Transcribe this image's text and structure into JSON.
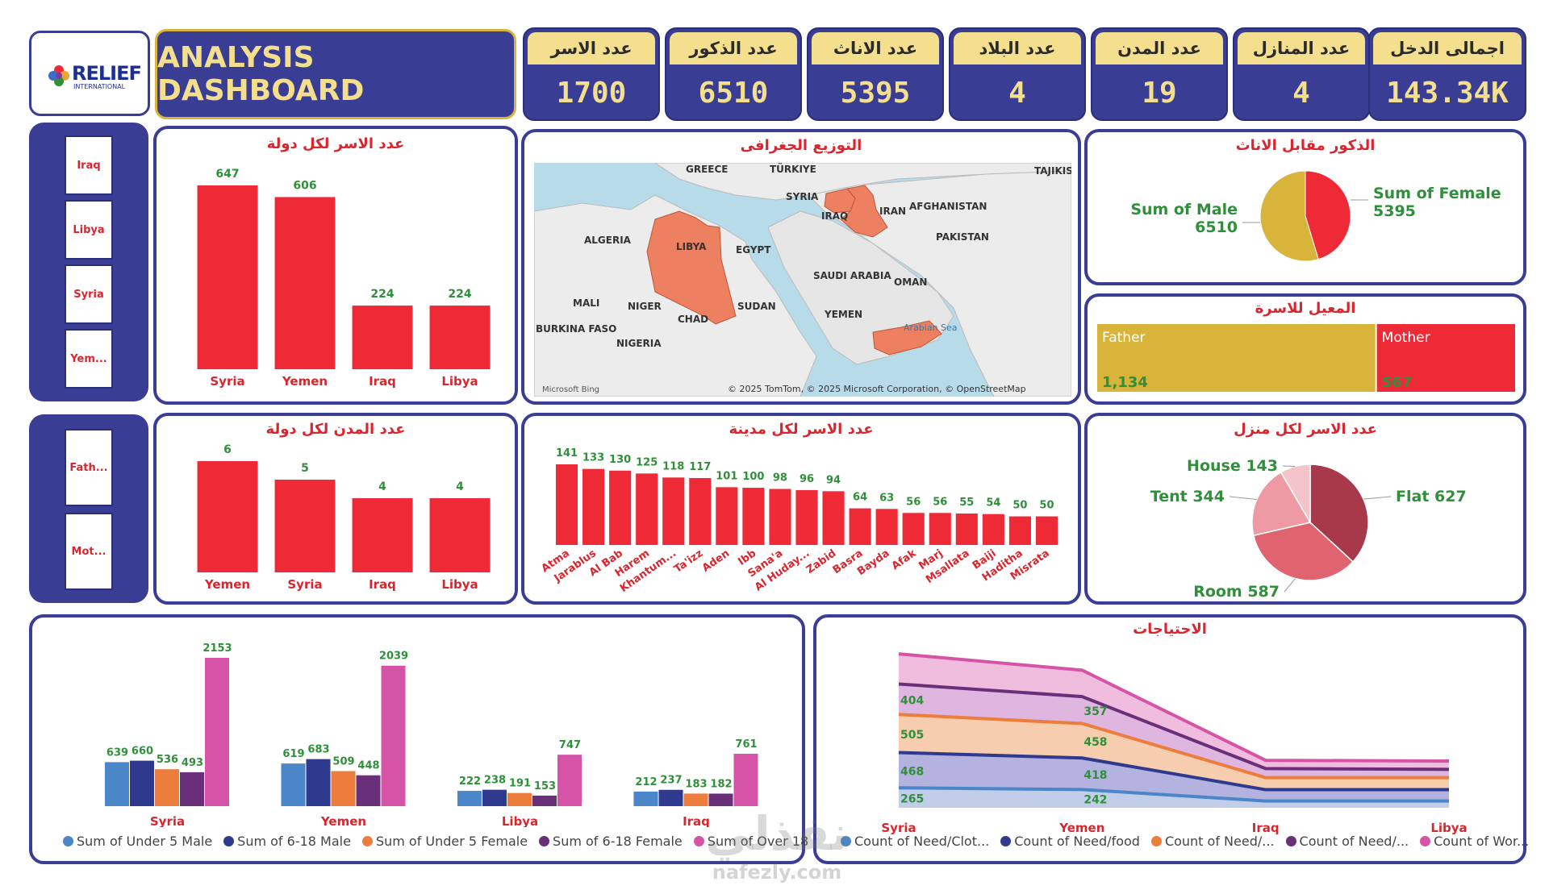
{
  "logo": {
    "name": "RELIEF",
    "sub": "INTERNATIONAL"
  },
  "title": "ANALYSIS DASHBOARD",
  "kpis": [
    {
      "label": "عدد الاسر",
      "value": "1700"
    },
    {
      "label": "عدد الذكور",
      "value": "6510"
    },
    {
      "label": "عدد الاناث",
      "value": "5395"
    },
    {
      "label": "عدد البلاد",
      "value": "4"
    },
    {
      "label": "عدد المدن",
      "value": "19"
    },
    {
      "label": "عدد المنازل",
      "value": "4"
    },
    {
      "label": "اجمالى الدخل",
      "value": "143.34K"
    }
  ],
  "slicer_country": [
    "Iraq",
    "Libya",
    "Syria",
    "Yem..."
  ],
  "slicer_provider": [
    "Fath...",
    "Mot..."
  ],
  "map": {
    "title": "التوزيع الجغرافى",
    "labels": [
      "GREECE",
      "TÜRKIYE",
      "TAJIKIS",
      "SYRIA",
      "IRAQ",
      "IRAN",
      "AFGHANISTAN",
      "ALGERIA",
      "LIBYA",
      "EGYPT",
      "PAKISTAN",
      "SAUDI ARABIA",
      "OMAN",
      "MALI",
      "NIGER",
      "CHAD",
      "SUDAN",
      "YEMEN",
      "BURKINA FASO",
      "NIGERIA",
      "Arabian Sea"
    ],
    "attribution": "© 2025 TomTom, © 2025 Microsoft Corporation, © OpenStreetMap",
    "bing": "Microsoft Bing"
  },
  "colors": {
    "navy": "#3a3d94",
    "red": "#ee2a36",
    "gold": "#d9b43b",
    "green": "#2f8f3a",
    "kpi_text": "#f3df8e"
  },
  "chart_data": [
    {
      "id": "families_per_country",
      "type": "bar",
      "title": "عدد الاسر لكل دولة",
      "categories": [
        "Syria",
        "Yemen",
        "Iraq",
        "Libya"
      ],
      "values": [
        647,
        606,
        224,
        224
      ]
    },
    {
      "id": "male_vs_female",
      "type": "pie",
      "title": "الذكور مقابل الاناث",
      "labels": [
        "Sum of Female",
        "Sum of Male"
      ],
      "values": [
        5395,
        6510
      ],
      "colors": [
        "#ee2a36",
        "#d9b43b"
      ]
    },
    {
      "id": "provider",
      "type": "bar",
      "title": "المعيل للاسرة",
      "labels": [
        "Father",
        "Mother"
      ],
      "values": [
        1134,
        567
      ],
      "value_labels": [
        "1,134",
        "567"
      ],
      "colors": [
        "#d9b43b",
        "#ee2a36"
      ]
    },
    {
      "id": "cities_per_country",
      "type": "bar",
      "title": "عدد المدن لكل دولة",
      "categories": [
        "Yemen",
        "Syria",
        "Iraq",
        "Libya"
      ],
      "values": [
        6,
        5,
        4,
        4
      ]
    },
    {
      "id": "families_per_city",
      "type": "bar",
      "title": "عدد الاسر لكل مدينة",
      "categories": [
        "Atma",
        "Jarablus",
        "Al Bab",
        "Harem",
        "Khantum...",
        "Ta'izz",
        "Aden",
        "Ibb",
        "Sana'a",
        "Al Huday...",
        "Zabid",
        "Basra",
        "Bayda",
        "Afak",
        "Marj",
        "Msallata",
        "Baiji",
        "Haditha",
        "Misrata"
      ],
      "values": [
        141,
        133,
        130,
        125,
        118,
        117,
        101,
        100,
        98,
        96,
        94,
        64,
        63,
        56,
        56,
        55,
        54,
        50,
        50
      ]
    },
    {
      "id": "families_per_house",
      "type": "pie",
      "title": "عدد الاسر لكل منزل",
      "labels": [
        "Flat",
        "Room",
        "Tent",
        "House"
      ],
      "values": [
        627,
        587,
        344,
        143
      ],
      "colors": [
        "#a8394a",
        "#e0646f",
        "#ee9aa4",
        "#f3c4c9"
      ]
    },
    {
      "id": "age_gender",
      "type": "bar",
      "categories": [
        "Syria",
        "Yemen",
        "Libya",
        "Iraq"
      ],
      "series": [
        {
          "name": "Sum of Under 5 Male",
          "values": [
            639,
            619,
            222,
            212
          ],
          "color": "#4b86c9"
        },
        {
          "name": "Sum of 6-18 Male",
          "values": [
            660,
            683,
            238,
            237
          ],
          "color": "#2f3a8f"
        },
        {
          "name": "Sum of Under 5 Female",
          "values": [
            536,
            509,
            191,
            183
          ],
          "color": "#ed7d3c"
        },
        {
          "name": "Sum of 6-18 Female",
          "values": [
            493,
            448,
            153,
            182
          ],
          "color": "#6a2f79"
        },
        {
          "name": "Sum of Over 18",
          "values": [
            2153,
            2039,
            747,
            761
          ],
          "color": "#d654a8"
        }
      ],
      "legend_labels": [
        "Sum of Under 5 Male",
        "Sum of 6-18 Male",
        "Sum of Under 5 Female",
        "Sum of 6-18 Female",
        "Sum of Over 18"
      ]
    },
    {
      "id": "needs",
      "type": "area",
      "title": "الاحتياجات",
      "categories": [
        "Syria",
        "Yemen",
        "Iraq",
        "Libya"
      ],
      "series": [
        {
          "name": "Count of Need/Clot...",
          "values": [
            265,
            242,
            90,
            90
          ],
          "color": "#4b86c9"
        },
        {
          "name": "Count of Need/food",
          "values": [
            468,
            418,
            150,
            150
          ],
          "color": "#2f3a8f"
        },
        {
          "name": "Count of Need/...",
          "values": [
            505,
            458,
            160,
            160
          ],
          "color": "#ed7d3c"
        },
        {
          "name": "Count of Need/...",
          "values": [
            404,
            357,
            120,
            110
          ],
          "color": "#6a2f79"
        },
        {
          "name": "Count of Wor...",
          "values": [
            400,
            350,
            110,
            110
          ],
          "color": "#d654a8"
        }
      ],
      "point_labels": {
        "Syria": [
          "265",
          "468",
          "505",
          "404"
        ],
        "Yemen": [
          "242",
          "418",
          "458",
          "357"
        ]
      }
    }
  ]
}
